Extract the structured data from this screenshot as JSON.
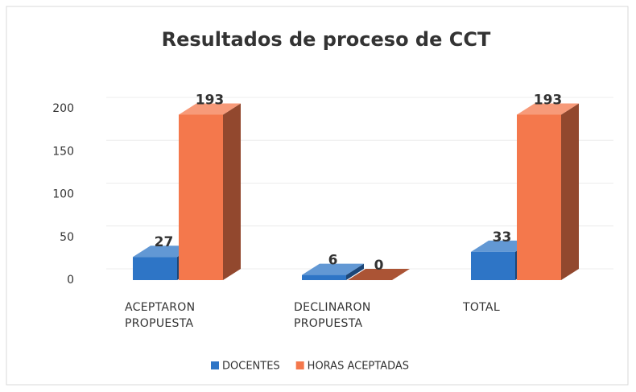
{
  "chart_data": {
    "type": "bar3d",
    "title": "Resultados de proceso de CCT",
    "categories": [
      "ACEPTARON PROPUESTA",
      "DECLINARON PROPUESTA",
      "TOTAL"
    ],
    "series": [
      {
        "name": "DOCENTES",
        "color": "#2e75c6",
        "values": [
          27,
          6,
          33
        ]
      },
      {
        "name": "HORAS ACEPTADAS",
        "color": "#f4784c",
        "values": [
          193,
          0,
          193
        ]
      }
    ],
    "ylim": [
      0,
      200
    ],
    "yticks": [
      0,
      50,
      100,
      150,
      200
    ],
    "grid": true,
    "legend": "bottom"
  }
}
